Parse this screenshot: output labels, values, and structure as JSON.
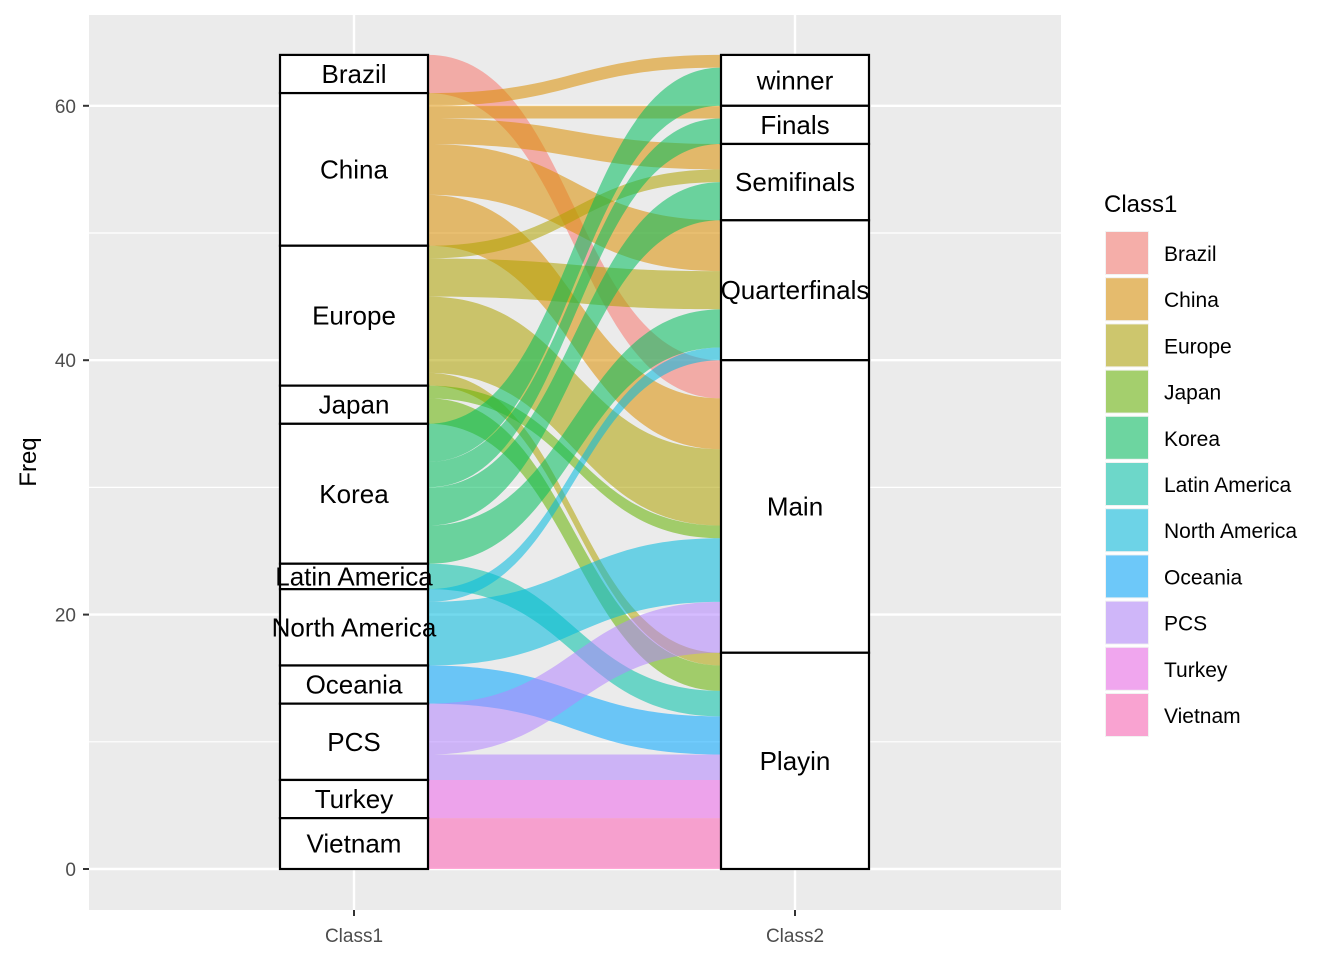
{
  "chart_data": {
    "type": "alluvial",
    "ylabel": "Freq",
    "ylim": [
      -3,
      67
    ],
    "y_ticks": [
      0,
      20,
      40,
      60
    ],
    "axes": [
      "Class1",
      "Class2"
    ],
    "grid": true,
    "legend": {
      "title": "Class1",
      "position": "right"
    },
    "class1_strata": [
      "Brazil",
      "China",
      "Europe",
      "Japan",
      "Korea",
      "Latin America",
      "North America",
      "Oceania",
      "PCS",
      "Turkey",
      "Vietnam"
    ],
    "class2_strata": [
      "winner",
      "Finals",
      "Semifinals",
      "Quarterfinals",
      "Main",
      "Playin"
    ],
    "colors": {
      "Brazil": "#F8766D",
      "China": "#DB8E00",
      "Europe": "#AEA200",
      "Japan": "#64B200",
      "Korea": "#00BD5C",
      "Latin America": "#00C1A7",
      "North America": "#00BADE",
      "Oceania": "#00A6FF",
      "PCS": "#B385FF",
      "Turkey": "#EF67EB",
      "Vietnam": "#FF63B6"
    },
    "flows": [
      {
        "from": "Brazil",
        "to": "Main",
        "freq": 3
      },
      {
        "from": "China",
        "to": "winner",
        "freq": 1
      },
      {
        "from": "China",
        "to": "Finals",
        "freq": 1
      },
      {
        "from": "China",
        "to": "Semifinals",
        "freq": 2
      },
      {
        "from": "China",
        "to": "Quarterfinals",
        "freq": 4
      },
      {
        "from": "China",
        "to": "Main",
        "freq": 4
      },
      {
        "from": "Europe",
        "to": "Semifinals",
        "freq": 1
      },
      {
        "from": "Europe",
        "to": "Quarterfinals",
        "freq": 3
      },
      {
        "from": "Europe",
        "to": "Main",
        "freq": 6
      },
      {
        "from": "Europe",
        "to": "Playin",
        "freq": 1
      },
      {
        "from": "Japan",
        "to": "Main",
        "freq": 1
      },
      {
        "from": "Japan",
        "to": "Playin",
        "freq": 2
      },
      {
        "from": "Korea",
        "to": "winner",
        "freq": 3
      },
      {
        "from": "Korea",
        "to": "Finals",
        "freq": 2
      },
      {
        "from": "Korea",
        "to": "Semifinals",
        "freq": 3
      },
      {
        "from": "Korea",
        "to": "Quarterfinals",
        "freq": 3
      },
      {
        "from": "Latin America",
        "to": "Playin",
        "freq": 2
      },
      {
        "from": "North America",
        "to": "Quarterfinals",
        "freq": 1
      },
      {
        "from": "North America",
        "to": "Main",
        "freq": 5
      },
      {
        "from": "Oceania",
        "to": "Playin",
        "freq": 3
      },
      {
        "from": "PCS",
        "to": "Main",
        "freq": 4
      },
      {
        "from": "PCS",
        "to": "Playin",
        "freq": 2
      },
      {
        "from": "Turkey",
        "to": "Playin",
        "freq": 3
      },
      {
        "from": "Vietnam",
        "to": "Playin",
        "freq": 4
      }
    ]
  }
}
